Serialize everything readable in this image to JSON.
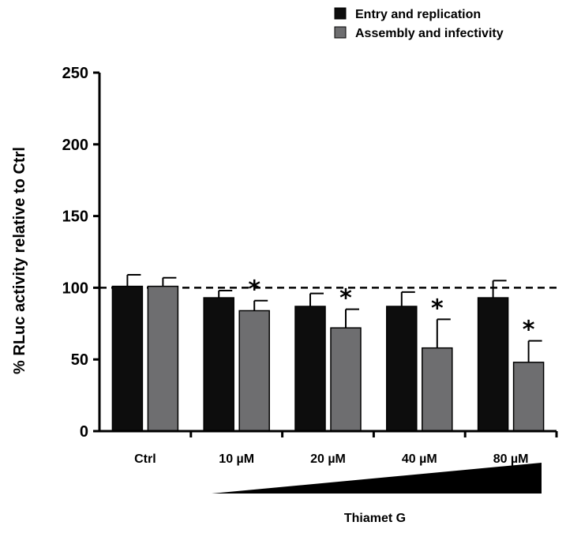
{
  "chart_data": {
    "type": "bar",
    "categories": [
      "Ctrl",
      "10 µM",
      "20 µM",
      "40 µM",
      "80 µM"
    ],
    "series": [
      {
        "name": "Entry and replication",
        "color": "#0d0d0d",
        "values": [
          101,
          93,
          87,
          87,
          93
        ],
        "errors": [
          8,
          5,
          9,
          10,
          12
        ],
        "significant": [
          false,
          false,
          false,
          false,
          false
        ]
      },
      {
        "name": "Assembly and infectivity",
        "color": "#6e6e70",
        "values": [
          101,
          84,
          72,
          58,
          48
        ],
        "errors": [
          6,
          7,
          13,
          20,
          15
        ],
        "significant": [
          false,
          true,
          true,
          true,
          true
        ]
      }
    ],
    "ylabel": "% RLuc activity relative to Ctrl",
    "xlabel": "",
    "ylim": [
      0,
      250
    ],
    "yticks": [
      0,
      50,
      100,
      150,
      200,
      250
    ],
    "reference_line": 100,
    "significance_marker": "*",
    "treatment_label": "Thiamet G",
    "legend_position": "top-right",
    "grid": false
  }
}
